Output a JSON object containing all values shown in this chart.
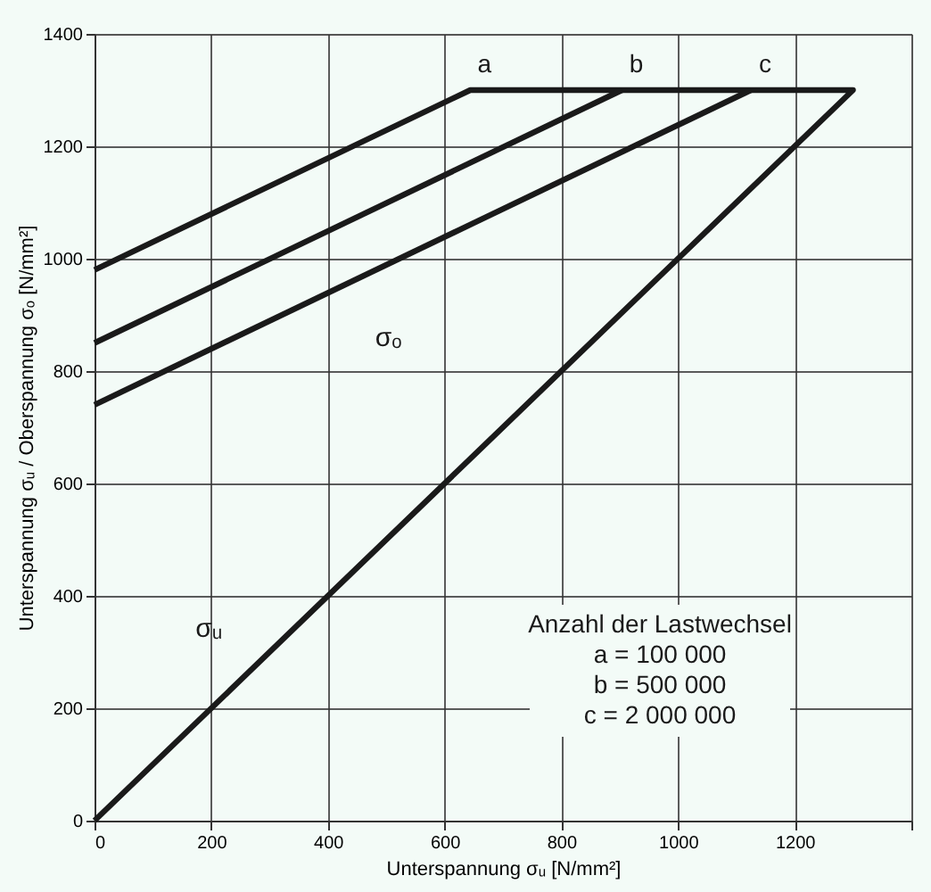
{
  "chart_data": {
    "type": "line",
    "xlabel": "Unterspannung σᵤ  [N/mm²]",
    "ylabel": "Unterspannung σᵤ / Oberspannung σₒ  [N/mm²]",
    "xlim": [
      0,
      1400
    ],
    "ylim": [
      0,
      1400
    ],
    "xticks": [
      0,
      200,
      400,
      600,
      800,
      1000,
      1200,
      {
        "value": 1400,
        "label": null
      }
    ],
    "yticks": [
      0,
      200,
      400,
      600,
      800,
      1000,
      1200,
      1400
    ],
    "grid": true,
    "line_style": "solid",
    "marker": "none",
    "series": [
      {
        "name": "a",
        "color": "#1a1a1a",
        "x": [
          0,
          644,
          1300,
          0
        ],
        "values": [
          980,
          1300,
          1300,
          0
        ]
      },
      {
        "name": "b",
        "color": "#1a1a1a",
        "x": [
          0,
          904
        ],
        "values": [
          850,
          1300
        ]
      },
      {
        "name": "c",
        "color": "#1a1a1a",
        "x": [
          0,
          1125
        ],
        "values": [
          740,
          1300
        ]
      }
    ],
    "annotations": [
      "σᵤ",
      "σₒ",
      "Anzahl der Lastwechsel",
      "a =    100 000",
      "b =    500 000",
      "c = 2 000 000"
    ]
  }
}
